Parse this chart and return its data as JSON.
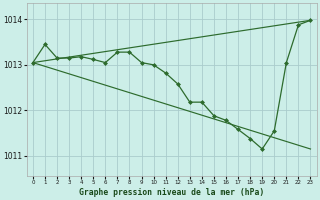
{
  "title": "Graphe pression niveau de la mer (hPa)",
  "bg_color": "#cceee8",
  "grid_color": "#b8ddd8",
  "line_color": "#2d6b2d",
  "xlim": [
    -0.5,
    23.5
  ],
  "ylim": [
    1010.55,
    1014.35
  ],
  "xticks": [
    0,
    1,
    2,
    3,
    4,
    5,
    6,
    7,
    8,
    9,
    10,
    11,
    12,
    13,
    14,
    15,
    16,
    17,
    18,
    19,
    20,
    21,
    22,
    23
  ],
  "yticks": [
    1011,
    1012,
    1013,
    1014
  ],
  "detailed_series": {
    "x": [
      0,
      1,
      2,
      3,
      4,
      5,
      6,
      7,
      8,
      9,
      10,
      11,
      12,
      13,
      14,
      15,
      16,
      17,
      18,
      19,
      20,
      21,
      22,
      23
    ],
    "y": [
      1013.05,
      1013.45,
      1013.15,
      1013.15,
      1013.18,
      1013.12,
      1013.05,
      1013.28,
      1013.28,
      1013.05,
      1013.0,
      1012.82,
      1012.58,
      1012.18,
      1012.18,
      1011.88,
      1011.78,
      1011.58,
      1011.38,
      1011.15,
      1011.55,
      1013.05,
      1013.88,
      1013.98
    ]
  },
  "trend_up": {
    "x": [
      0,
      23
    ],
    "y": [
      1013.05,
      1013.98
    ]
  },
  "trend_down": {
    "x": [
      0,
      23
    ],
    "y": [
      1013.05,
      1011.15
    ]
  }
}
